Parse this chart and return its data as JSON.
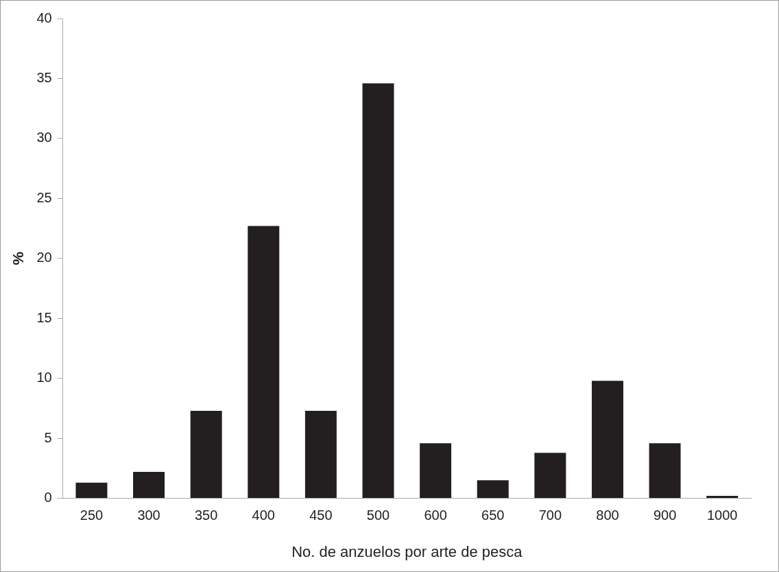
{
  "chart_data": {
    "type": "bar",
    "xlabel": "No. de anzuelos por arte de pesca",
    "ylabel": "%",
    "categories": [
      "250",
      "300",
      "350",
      "400",
      "450",
      "500",
      "600",
      "650",
      "700",
      "800",
      "900",
      "1000"
    ],
    "values": [
      1.3,
      2.2,
      7.3,
      22.7,
      7.3,
      34.6,
      4.6,
      1.5,
      3.8,
      9.8,
      4.6,
      0.2
    ],
    "color": "#231f20",
    "ylim": [
      0,
      40
    ],
    "yticks": [
      0,
      5,
      10,
      15,
      20,
      25,
      30,
      35,
      40
    ]
  }
}
